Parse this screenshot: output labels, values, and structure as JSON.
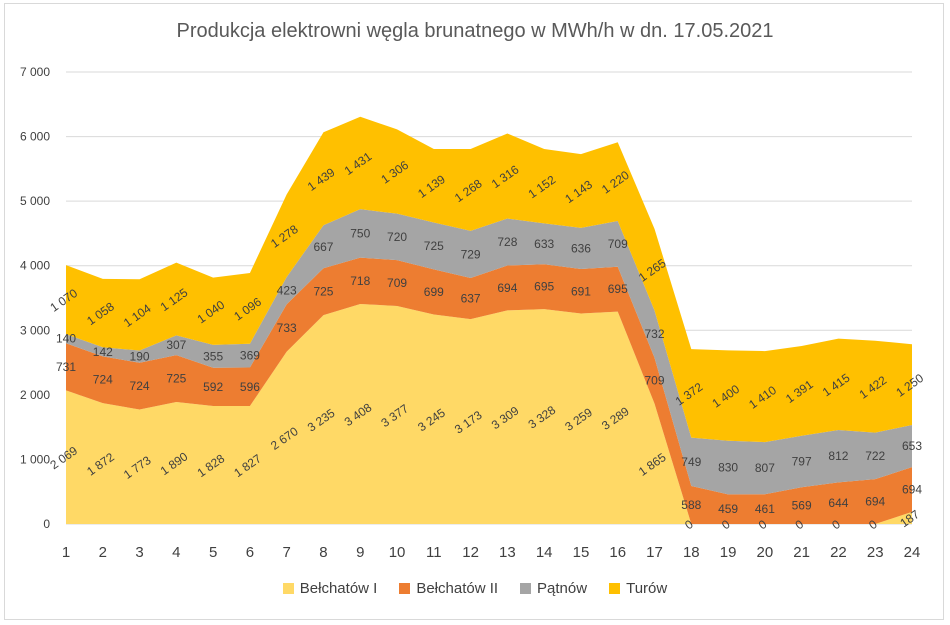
{
  "chart_data": {
    "type": "area",
    "stacked": true,
    "title": "Produkcja elektrowni węgla brunatnego w MWh/h w dn. 17.05.2021",
    "xlabel": "",
    "ylabel": "",
    "categories": [
      "1",
      "2",
      "3",
      "4",
      "5",
      "6",
      "7",
      "8",
      "9",
      "10",
      "11",
      "12",
      "13",
      "14",
      "15",
      "16",
      "17",
      "18",
      "19",
      "20",
      "21",
      "22",
      "23",
      "24"
    ],
    "ylim": [
      0,
      7000
    ],
    "yticks": [
      0,
      1000,
      2000,
      3000,
      4000,
      5000,
      6000,
      7000
    ],
    "ytick_labels": [
      "0",
      "1 000",
      "2 000",
      "3 000",
      "4 000",
      "5 000",
      "6 000",
      "7 000"
    ],
    "grid": true,
    "legend_position": "bottom",
    "series": [
      {
        "name": "Bełchatów I",
        "color": "#ffd966",
        "values": [
          2069,
          1872,
          1773,
          1890,
          1828,
          1827,
          2670,
          3235,
          3408,
          3377,
          3245,
          3173,
          3309,
          3328,
          3259,
          3289,
          1865,
          0,
          0,
          0,
          0,
          0,
          0,
          187
        ],
        "labels": [
          "2 069",
          "1 872",
          "1 773",
          "1 890",
          "1 828",
          "1 827",
          "2 670",
          "3 235",
          "3 408",
          "3 377",
          "3 245",
          "3 173",
          "3 309",
          "3 328",
          "3 259",
          "3 289",
          "1 865",
          "0",
          "0",
          "0",
          "0",
          "0",
          "0",
          "187"
        ]
      },
      {
        "name": "Bełchatów II",
        "color": "#ed7d31",
        "values": [
          731,
          724,
          724,
          725,
          592,
          596,
          733,
          725,
          718,
          709,
          699,
          637,
          694,
          695,
          691,
          695,
          709,
          588,
          459,
          461,
          569,
          644,
          694,
          694
        ],
        "labels": [
          "731",
          "724",
          "724",
          "725",
          "592",
          "596",
          "733",
          "725",
          "718",
          "709",
          "699",
          "637",
          "694",
          "695",
          "691",
          "695",
          "709",
          "588",
          "459",
          "461",
          "569",
          "644",
          "694",
          "694"
        ]
      },
      {
        "name": "Pątnów",
        "color": "#a5a5a5",
        "values": [
          140,
          142,
          190,
          307,
          355,
          369,
          423,
          667,
          750,
          720,
          725,
          729,
          728,
          633,
          636,
          709,
          732,
          749,
          830,
          807,
          797,
          812,
          722,
          653
        ],
        "labels": [
          "140",
          "142",
          "190",
          "307",
          "355",
          "369",
          "423",
          "667",
          "750",
          "720",
          "725",
          "729",
          "728",
          "633",
          "636",
          "709",
          "732",
          "749",
          "830",
          "807",
          "797",
          "812",
          "722",
          "653"
        ]
      },
      {
        "name": "Turów",
        "color": "#ffc000",
        "values": [
          1070,
          1058,
          1104,
          1125,
          1040,
          1096,
          1278,
          1439,
          1431,
          1306,
          1139,
          1268,
          1316,
          1152,
          1143,
          1220,
          1265,
          1372,
          1400,
          1410,
          1391,
          1415,
          1422,
          1250
        ],
        "labels": [
          "1 070",
          "1 058",
          "1 104",
          "1 125",
          "1 040",
          "1 096",
          "1 278",
          "1 439",
          "1 431",
          "1 306",
          "1 139",
          "1 268",
          "1 316",
          "1 152",
          "1 143",
          "1 220",
          "1 265",
          "1 372",
          "1 400",
          "1 410",
          "1 391",
          "1 415",
          "1 422",
          "1 250"
        ]
      }
    ]
  }
}
